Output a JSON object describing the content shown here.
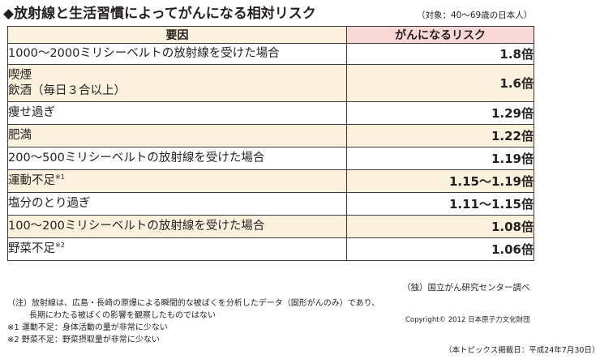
{
  "title": "◆放射線と生活習慣によってがんになる相対リスク",
  "subtitle": "（対象：40～69歳の日本人）",
  "table": {
    "header_factor": "要因",
    "header_risk": "がんになるリスク",
    "rows": [
      {
        "factor": "1000～2000ミリシーベルトの放射線を受けた場合",
        "risk": "1.8倍"
      },
      {
        "factor": "喫煙",
        "factor2": "飲酒（毎日３合以上）",
        "risk": "1.6倍"
      },
      {
        "factor": "痩せ過ぎ",
        "risk": "1.29倍"
      },
      {
        "factor": "肥満",
        "risk": "1.22倍"
      },
      {
        "factor": "200～500ミリシーベルトの放射線を受けた場合",
        "risk": "1.19倍"
      },
      {
        "factor": "運動不足",
        "note": "※1",
        "risk": "1.15～1.19倍"
      },
      {
        "factor": "塩分のとり過ぎ",
        "risk": "1.11～1.15倍"
      },
      {
        "factor": "100～200ミリシーベルトの放射線を受けた場合",
        "risk": "1.08倍"
      },
      {
        "factor": "野菜不足",
        "note": "※2",
        "risk": "1.06倍"
      }
    ]
  },
  "source": "（独）国立がん研究センター調べ",
  "notes": {
    "note_main": "（注）放射線は、広島・長崎の原爆による瞬間的な被ばくを分析したデータ（固形がんのみ）であり、",
    "note_main_cont": "長期にわたる被ばくの影響を観察したものではない",
    "note1": "※1  運動不足：身体活動の量が非常に少ない",
    "note2": "※2  野菜不足：野菜摂取量が非常に少ない"
  },
  "copyright": "Copyright© 2012 日本原子力文化財団",
  "date": "（本トピックス掲載日：平成24年7月30日）"
}
